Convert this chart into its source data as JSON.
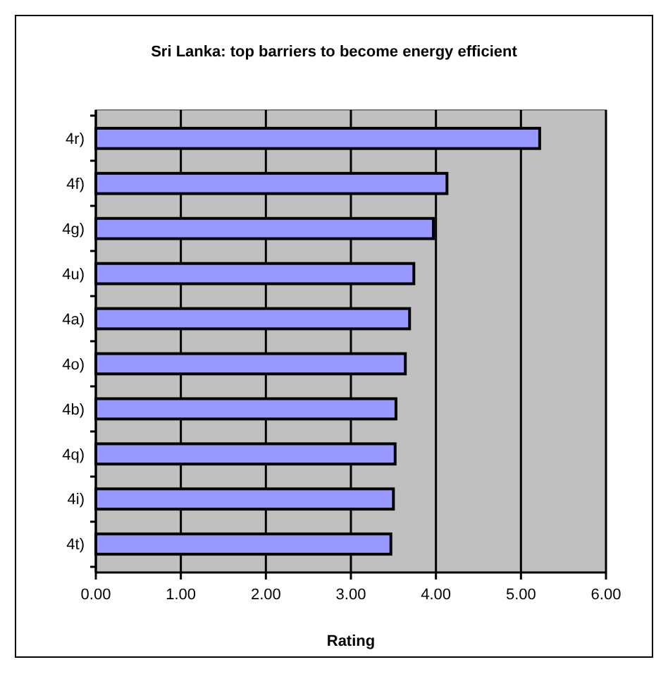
{
  "chart_data": {
    "type": "bar",
    "orientation": "horizontal",
    "title": "Sri Lanka: top barriers to become energy efficient",
    "xlabel": "Rating",
    "categories": [
      "4r)",
      "4f)",
      "4g)",
      "4u)",
      "4a)",
      "4o)",
      "4b)",
      "4q)",
      "4i)",
      "4t)"
    ],
    "series": [
      {
        "color": "#9999ff",
        "values": [
          5.22,
          4.13,
          3.97,
          3.74,
          3.69,
          3.64,
          3.53,
          3.52,
          3.5,
          3.47
        ]
      }
    ],
    "xlim": [
      0,
      6
    ],
    "xticks": [
      {
        "value": 0,
        "label": "0.00"
      },
      {
        "value": 1,
        "label": "1.00"
      },
      {
        "value": 2,
        "label": "2.00"
      },
      {
        "value": 3,
        "label": "3.00"
      },
      {
        "value": 4,
        "label": "4.00"
      },
      {
        "value": 5,
        "label": "5.00"
      },
      {
        "value": 6,
        "label": "6.00"
      }
    ],
    "grid": "x"
  }
}
